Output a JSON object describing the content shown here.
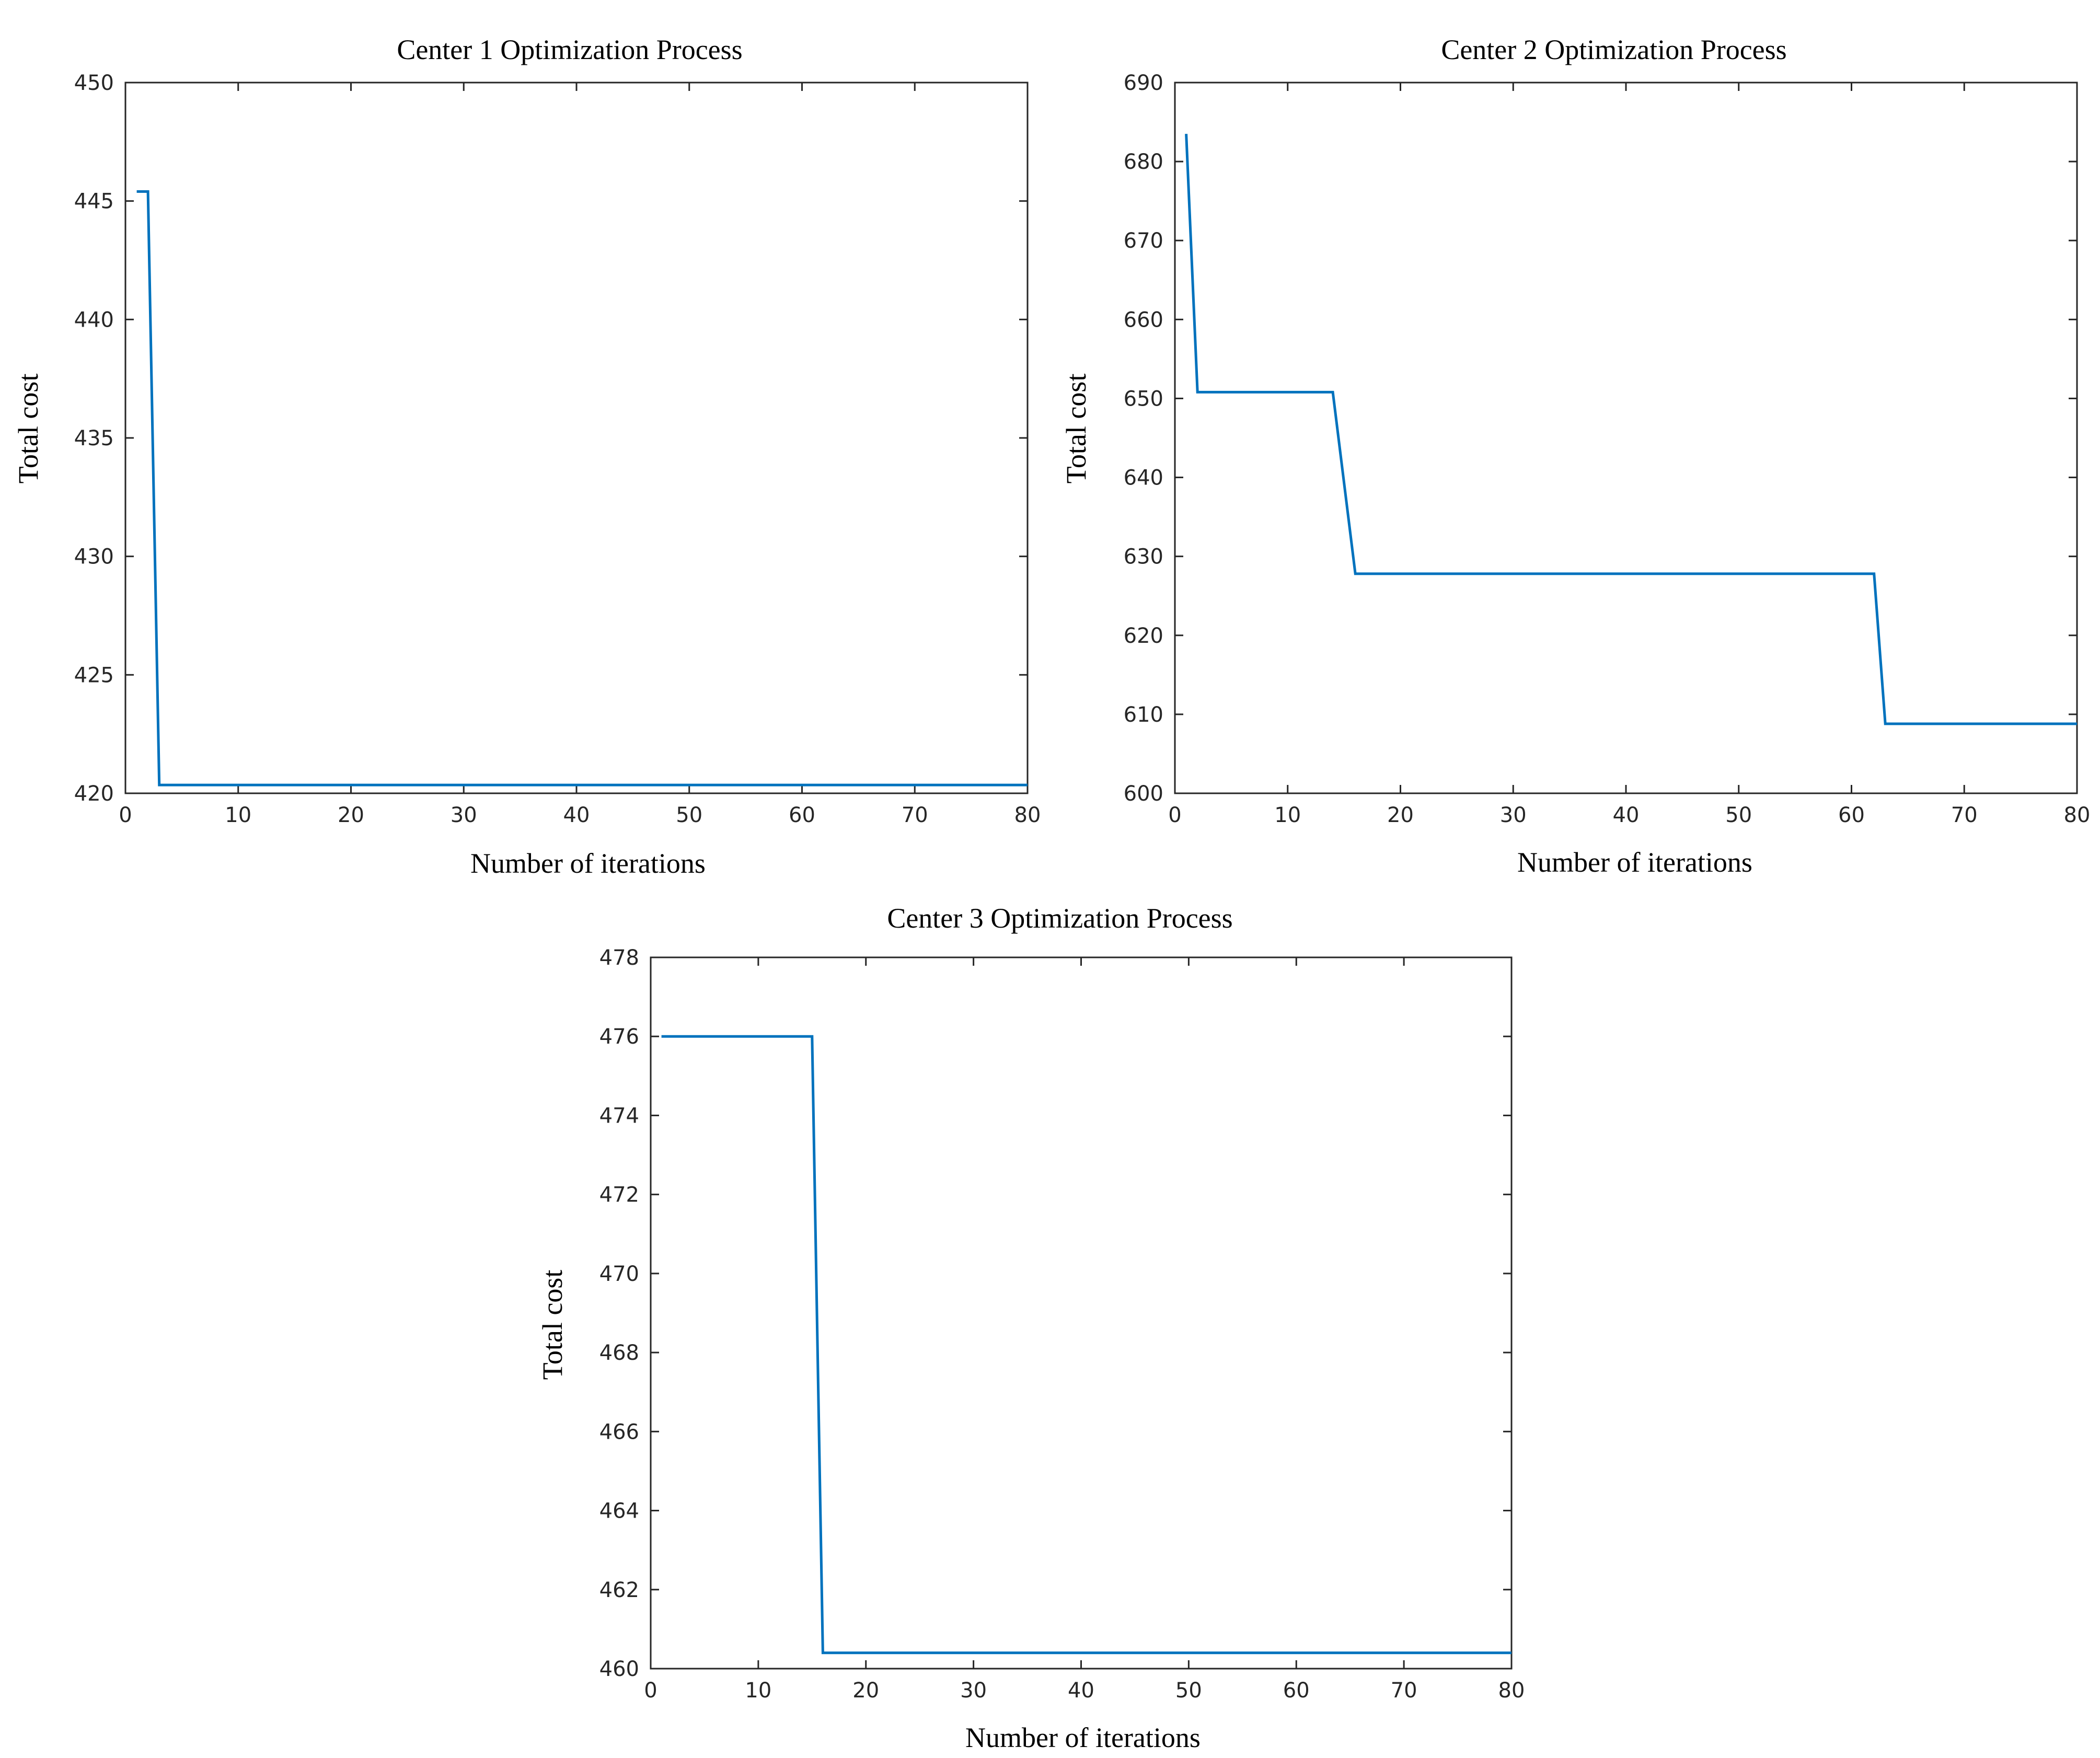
{
  "chart_data": [
    {
      "type": "line",
      "title": "Center 1 Optimization Process",
      "xlabel": "Number of iterations",
      "ylabel": "Total cost",
      "xlim": [
        0,
        80
      ],
      "ylim": [
        420,
        450
      ],
      "xticks": [
        0,
        10,
        20,
        30,
        40,
        50,
        60,
        70,
        80
      ],
      "yticks": [
        420,
        425,
        430,
        435,
        440,
        445,
        450
      ],
      "series": [
        {
          "name": "Center 1",
          "color": "#0072BD",
          "x": [
            1,
            2,
            3,
            80
          ],
          "y": [
            445.4,
            445.4,
            420.35,
            420.35
          ]
        }
      ]
    },
    {
      "type": "line",
      "title": "Center 2 Optimization Process",
      "xlabel": "Number of iterations",
      "ylabel": "Total cost",
      "xlim": [
        0,
        80
      ],
      "ylim": [
        600,
        690
      ],
      "xticks": [
        0,
        10,
        20,
        30,
        40,
        50,
        60,
        70,
        80
      ],
      "yticks": [
        600,
        610,
        620,
        630,
        640,
        650,
        660,
        670,
        680,
        690
      ],
      "series": [
        {
          "name": "Center 2",
          "color": "#0072BD",
          "x": [
            1,
            2,
            14,
            16,
            62,
            63,
            80
          ],
          "y": [
            683.5,
            650.8,
            650.8,
            627.8,
            627.8,
            608.8,
            608.8
          ]
        }
      ]
    },
    {
      "type": "line",
      "title": "Center 3 Optimization Process",
      "xlabel": "Number of iterations",
      "ylabel": "Total cost",
      "xlim": [
        0,
        80
      ],
      "ylim": [
        460,
        478
      ],
      "xticks": [
        0,
        10,
        20,
        30,
        40,
        50,
        60,
        70,
        80
      ],
      "yticks": [
        460,
        462,
        464,
        466,
        468,
        470,
        472,
        474,
        476,
        478
      ],
      "series": [
        {
          "name": "Center 3",
          "color": "#0072BD",
          "x": [
            1,
            15,
            16,
            80
          ],
          "y": [
            476.0,
            476.0,
            460.4,
            460.4
          ]
        }
      ]
    }
  ]
}
